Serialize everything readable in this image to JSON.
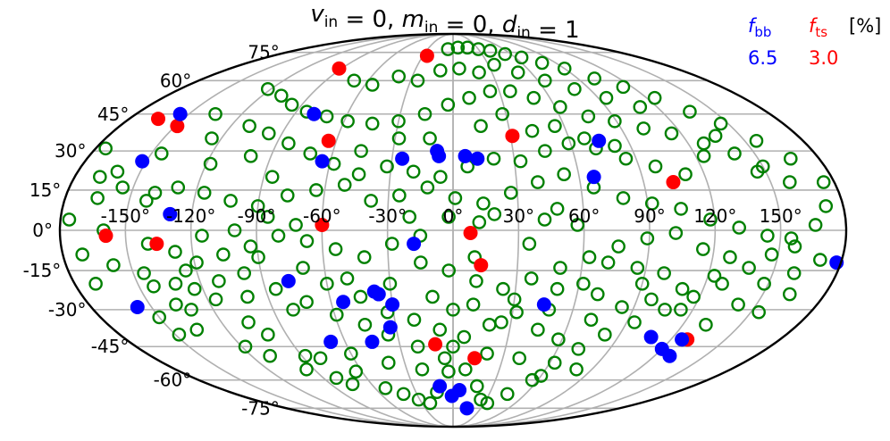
{
  "chart_data": {
    "type": "scatter",
    "projection": "mollweide",
    "title": {
      "parts": [
        {
          "v": "v",
          "sub": "in"
        },
        {
          "v": " = 0, "
        },
        {
          "v": "m",
          "sub": "in"
        },
        {
          "v": " = 0, "
        },
        {
          "v": "d",
          "sub": "in"
        },
        {
          "v": " = 1"
        }
      ]
    },
    "grid": true,
    "xticks": [
      -150,
      -120,
      -90,
      -60,
      -30,
      0,
      30,
      60,
      90,
      120,
      150
    ],
    "xtick_labels": [
      "-150°",
      "-120°",
      "-90°",
      "-60°",
      "-30°",
      "0°",
      "30°",
      "60°",
      "90°",
      "120°",
      "150°"
    ],
    "yticks": [
      -75,
      -60,
      -45,
      -30,
      -15,
      0,
      15,
      30,
      45,
      60,
      75
    ],
    "ytick_labels": [
      "-75°",
      "-60°",
      "-45°",
      "-30°",
      "-15°",
      "0°",
      "15°",
      "30°",
      "45°",
      "60°",
      "75°"
    ],
    "legend": {
      "placement": "top-right",
      "unit": "[%]",
      "entries": [
        {
          "symbol": "f",
          "sub": "bb",
          "value": "6.5",
          "color": "#0000ff"
        },
        {
          "symbol": "f",
          "sub": "ts",
          "value": "3.0",
          "color": "#ff0000"
        }
      ]
    },
    "series": [
      {
        "key": "blue",
        "style": "filled",
        "color": "#0000ff",
        "points": [
          [
            -155,
            45
          ],
          [
            -152,
            26
          ],
          [
            -130,
            6
          ],
          [
            -157,
            -29
          ],
          [
            -79,
            45
          ],
          [
            -78,
            -19
          ],
          [
            -68,
            -43
          ],
          [
            -64,
            26
          ],
          [
            -54,
            -27
          ],
          [
            -45,
            -43
          ],
          [
            -38,
            -23
          ],
          [
            -36,
            -24
          ],
          [
            -33,
            -37
          ],
          [
            -30,
            -28
          ],
          [
            -25,
            27
          ],
          [
            -18,
            -5
          ],
          [
            -8,
            30
          ],
          [
            -7,
            28
          ],
          [
            6,
            28
          ],
          [
            12,
            27
          ],
          [
            -10,
            -63
          ],
          [
            -1,
            -68
          ],
          [
            5,
            -65
          ],
          [
            15,
            -75
          ],
          [
            45,
            -28
          ],
          [
            67,
            20
          ],
          [
            75,
            34
          ],
          [
            108,
            -41
          ],
          [
            126,
            -42
          ],
          [
            120,
            -46
          ],
          [
            129,
            -49
          ],
          [
            178,
            -12
          ]
        ]
      },
      {
        "key": "red",
        "style": "filled",
        "color": "#ff0000",
        "points": [
          [
            -164,
            43
          ],
          [
            -149,
            40
          ],
          [
            -64,
            34
          ],
          [
            -92,
            66
          ],
          [
            -26,
            73
          ],
          [
            -60,
            2
          ],
          [
            -136,
            -5
          ],
          [
            -159,
            -2
          ],
          [
            -10,
            -44
          ],
          [
            8,
            -1
          ],
          [
            13,
            -13
          ],
          [
            13,
            -50
          ],
          [
            31,
            36
          ],
          [
            104,
            18
          ],
          [
            129,
            -42
          ]
        ]
      },
      {
        "key": "green",
        "style": "open",
        "color": "#008000",
        "points": [
          [
            -175,
            31
          ],
          [
            -165,
            12
          ],
          [
            -176,
            4
          ],
          [
            -161,
            22
          ],
          [
            -145,
            29
          ],
          [
            -139,
            14
          ],
          [
            -125,
            35
          ],
          [
            -118,
            25
          ],
          [
            -140,
            -5
          ],
          [
            -125,
            -15
          ],
          [
            -131,
            -30
          ],
          [
            -116,
            -26
          ],
          [
            -106,
            -35
          ],
          [
            -143,
            -21
          ],
          [
            -136,
            -38
          ],
          [
            -118,
            -45
          ],
          [
            -109,
            -49
          ],
          [
            -100,
            -40
          ],
          [
            -88,
            -49
          ],
          [
            -81,
            -59
          ],
          [
            -74,
            -62
          ],
          [
            -64,
            -56
          ],
          [
            -52,
            -64
          ],
          [
            -41,
            -67
          ],
          [
            -31,
            -70
          ],
          [
            -22,
            -72
          ],
          [
            -13,
            -66
          ],
          [
            -3,
            -56
          ],
          [
            8,
            -55
          ],
          [
            18,
            -63
          ],
          [
            25,
            -70
          ],
          [
            33,
            -72
          ],
          [
            45,
            -67
          ],
          [
            56,
            -60
          ],
          [
            63,
            -52
          ],
          [
            72,
            -46
          ],
          [
            82,
            -40
          ],
          [
            94,
            -35
          ],
          [
            106,
            -30
          ],
          [
            117,
            -25
          ],
          [
            128,
            -20
          ],
          [
            138,
            -14
          ],
          [
            147,
            -9
          ],
          [
            155,
            -3
          ],
          [
            166,
            2
          ],
          [
            172,
            9
          ],
          [
            175,
            18
          ],
          [
            166,
            27
          ],
          [
            156,
            34
          ],
          [
            146,
            41
          ],
          [
            136,
            46
          ],
          [
            125,
            52
          ],
          [
            114,
            57
          ],
          [
            102,
            61
          ],
          [
            90,
            66
          ],
          [
            78,
            69
          ],
          [
            66,
            72
          ],
          [
            54,
            74
          ],
          [
            42,
            76
          ],
          [
            30,
            77
          ],
          [
            18,
            78
          ],
          [
            6,
            78
          ],
          [
            -6,
            77
          ],
          [
            -122,
            56
          ],
          [
            -108,
            53
          ],
          [
            -96,
            49
          ],
          [
            -84,
            46
          ],
          [
            -71,
            44
          ],
          [
            -58,
            42
          ],
          [
            -44,
            41
          ],
          [
            -30,
            42
          ],
          [
            -16,
            45
          ],
          [
            -3,
            49
          ],
          [
            10,
            52
          ],
          [
            24,
            55
          ],
          [
            37,
            55
          ],
          [
            50,
            52
          ],
          [
            63,
            48
          ],
          [
            76,
            44
          ],
          [
            89,
            42
          ],
          [
            102,
            39
          ],
          [
            115,
            37
          ],
          [
            128,
            33
          ],
          [
            140,
            29
          ],
          [
            150,
            24
          ],
          [
            159,
            18
          ],
          [
            -168,
            20
          ],
          [
            -155,
            16
          ],
          [
            -142,
            11
          ],
          [
            -129,
            16
          ],
          [
            -116,
            14
          ],
          [
            -103,
            11
          ],
          [
            -90,
            9
          ],
          [
            -77,
            13
          ],
          [
            -64,
            15
          ],
          [
            -51,
            17
          ],
          [
            -38,
            11
          ],
          [
            -25,
            13
          ],
          [
            -12,
            16
          ],
          [
            1,
            12
          ],
          [
            14,
            10
          ],
          [
            27,
            14
          ],
          [
            40,
            18
          ],
          [
            53,
            21
          ],
          [
            66,
            16
          ],
          [
            79,
            12
          ],
          [
            92,
            10
          ],
          [
            105,
            8
          ],
          [
            118,
            4
          ],
          [
            131,
            1
          ],
          [
            144,
            -2
          ],
          [
            157,
            -6
          ],
          [
            170,
            -11
          ],
          [
            -171,
            -9
          ],
          [
            -158,
            -13
          ],
          [
            -145,
            -16
          ],
          [
            -132,
            -20
          ],
          [
            -119,
            -12
          ],
          [
            -106,
            -9
          ],
          [
            -93,
            -6
          ],
          [
            -80,
            -2
          ],
          [
            -67,
            -4
          ],
          [
            -54,
            -7
          ],
          [
            -41,
            -10
          ],
          [
            -28,
            -5
          ],
          [
            -15,
            -12
          ],
          [
            -2,
            -15
          ],
          [
            11,
            -19
          ],
          [
            24,
            -22
          ],
          [
            37,
            -18
          ],
          [
            50,
            -14
          ],
          [
            63,
            -10
          ],
          [
            76,
            -6
          ],
          [
            89,
            -3
          ],
          [
            102,
            -1
          ],
          [
            115,
            -7
          ],
          [
            128,
            -10
          ],
          [
            141,
            -28
          ],
          [
            154,
            -31
          ],
          [
            163,
            -24
          ],
          [
            -150,
            -33
          ],
          [
            -137,
            -28
          ],
          [
            -124,
            -22
          ],
          [
            -111,
            -19
          ],
          [
            -98,
            -16
          ],
          [
            -85,
            -22
          ],
          [
            -72,
            -27
          ],
          [
            -59,
            -32
          ],
          [
            -46,
            -36
          ],
          [
            -33,
            -31
          ],
          [
            -20,
            -34
          ],
          [
            -7,
            -38
          ],
          [
            6,
            -41
          ],
          [
            19,
            -36
          ],
          [
            32,
            -31
          ],
          [
            45,
            -38
          ],
          [
            58,
            -42
          ],
          [
            71,
            -34
          ],
          [
            84,
            -29
          ],
          [
            97,
            -26
          ],
          [
            110,
            -22
          ],
          [
            123,
            -17
          ],
          [
            -110,
            40
          ],
          [
            -97,
            37
          ],
          [
            -84,
            33
          ],
          [
            -71,
            29
          ],
          [
            -58,
            25
          ],
          [
            -45,
            21
          ],
          [
            -32,
            24
          ],
          [
            -19,
            22
          ],
          [
            -6,
            20
          ],
          [
            7,
            24
          ],
          [
            20,
            27
          ],
          [
            33,
            26
          ],
          [
            46,
            30
          ],
          [
            59,
            33
          ],
          [
            72,
            31
          ],
          [
            85,
            27
          ],
          [
            98,
            24
          ],
          [
            111,
            21
          ],
          [
            124,
            28
          ],
          [
            137,
            36
          ],
          [
            146,
            22
          ],
          [
            -135,
            45
          ],
          [
            -100,
            28
          ],
          [
            -86,
            20
          ],
          [
            -46,
            30
          ],
          [
            -20,
            5
          ],
          [
            -2,
            5
          ],
          [
            19,
            6
          ],
          [
            42,
            4
          ],
          [
            57,
            2
          ],
          [
            72,
            -12
          ],
          [
            86,
            -14
          ],
          [
            99,
            -16
          ],
          [
            114,
            -30
          ],
          [
            132,
            -36
          ],
          [
            148,
            -20
          ],
          [
            160,
            -16
          ],
          [
            -90,
            -10
          ],
          [
            -70,
            -14
          ],
          [
            -50,
            -18
          ],
          [
            -30,
            -20
          ],
          [
            -10,
            -25
          ],
          [
            10,
            -28
          ],
          [
            30,
            -26
          ],
          [
            50,
            -22
          ],
          [
            70,
            -24
          ],
          [
            90,
            -20
          ],
          [
            -95,
            -55
          ],
          [
            -80,
            -50
          ],
          [
            -60,
            -48
          ],
          [
            -40,
            -52
          ],
          [
            -20,
            -55
          ],
          [
            0,
            -45
          ],
          [
            20,
            -48
          ],
          [
            40,
            -50
          ],
          [
            60,
            -58
          ],
          [
            80,
            -55
          ],
          [
            -70,
            60
          ],
          [
            -55,
            58
          ],
          [
            -40,
            62
          ],
          [
            -25,
            60
          ],
          [
            -10,
            65
          ],
          [
            5,
            66
          ],
          [
            20,
            64
          ],
          [
            35,
            68
          ],
          [
            50,
            64
          ],
          [
            65,
            60
          ],
          [
            80,
            56
          ],
          [
            95,
            52
          ],
          [
            110,
            48
          ],
          [
            -160,
            0
          ],
          [
            -170,
            -20
          ],
          [
            -148,
            -40
          ],
          [
            -28,
            35
          ],
          [
            -12,
            35
          ],
          [
            15,
            40
          ],
          [
            28,
            45
          ],
          [
            42,
            38
          ],
          [
            55,
            40
          ],
          [
            68,
            35
          ],
          [
            82,
            32
          ],
          [
            -60,
            -20
          ],
          [
            -45,
            -25
          ],
          [
            0,
            -30
          ],
          [
            25,
            -35
          ],
          [
            48,
            -30
          ],
          [
            62,
            -20
          ],
          [
            -80,
            -30
          ],
          [
            -100,
            -25
          ],
          [
            -115,
            -2
          ],
          [
            -128,
            -8
          ],
          [
            -100,
            0
          ],
          [
            -85,
            5
          ],
          [
            -72,
            2
          ],
          [
            -15,
            -2
          ],
          [
            12,
            3
          ],
          [
            35,
            -5
          ],
          [
            48,
            8
          ],
          [
            -20,
            -45
          ],
          [
            -35,
            -40
          ],
          [
            -5,
            -50
          ],
          [
            10,
            -10
          ]
        ]
      }
    ]
  }
}
